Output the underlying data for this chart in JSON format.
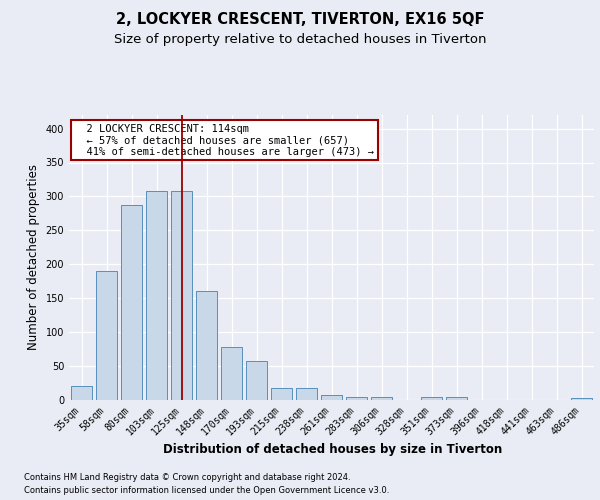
{
  "title": "2, LOCKYER CRESCENT, TIVERTON, EX16 5QF",
  "subtitle": "Size of property relative to detached houses in Tiverton",
  "xlabel": "Distribution of detached houses by size in Tiverton",
  "ylabel": "Number of detached properties",
  "footnote1": "Contains HM Land Registry data © Crown copyright and database right 2024.",
  "footnote2": "Contains public sector information licensed under the Open Government Licence v3.0.",
  "categories": [
    "35sqm",
    "58sqm",
    "80sqm",
    "103sqm",
    "125sqm",
    "148sqm",
    "170sqm",
    "193sqm",
    "215sqm",
    "238sqm",
    "261sqm",
    "283sqm",
    "306sqm",
    "328sqm",
    "351sqm",
    "373sqm",
    "396sqm",
    "418sqm",
    "441sqm",
    "463sqm",
    "486sqm"
  ],
  "values": [
    20,
    190,
    288,
    308,
    308,
    160,
    78,
    57,
    18,
    18,
    7,
    4,
    5,
    0,
    4,
    4,
    0,
    0,
    0,
    0,
    3
  ],
  "bar_color": "#c8d8e8",
  "bar_edge_color": "#5590bb",
  "vline_x": 4.0,
  "vline_color": "#990000",
  "annotation_text": "  2 LOCKYER CRESCENT: 114sqm\n  ← 57% of detached houses are smaller (657)\n  41% of semi-detached houses are larger (473) →",
  "annotation_box_color": "#ffffff",
  "annotation_box_edge": "#990000",
  "ylim": [
    0,
    420
  ],
  "yticks": [
    0,
    50,
    100,
    150,
    200,
    250,
    300,
    350,
    400
  ],
  "bg_color": "#eaecf5",
  "plot_bg_color": "#eaecf5",
  "grid_color": "#ffffff",
  "title_fontsize": 10.5,
  "subtitle_fontsize": 9.5,
  "ylabel_fontsize": 8.5,
  "xlabel_fontsize": 8.5,
  "tick_fontsize": 7,
  "annot_fontsize": 7.5,
  "footnote_fontsize": 6.0
}
